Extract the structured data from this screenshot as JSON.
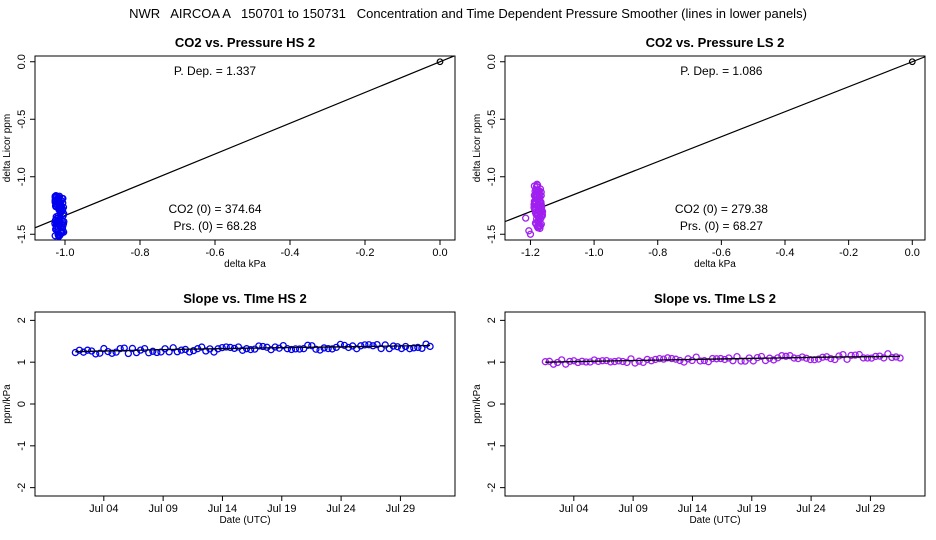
{
  "main_title": "NWR   AIRCOA A   150701 to 150731   Concentration and Time Dependent Pressure Smoother (lines in lower panels)",
  "colors": {
    "hs": "#0000ee",
    "ls": "#a020f0",
    "line": "#000000"
  },
  "chart_data": [
    {
      "id": "p1",
      "type": "scatter",
      "title": "CO2 vs. Pressure HS 2",
      "xlabel": "delta kPa",
      "ylabel": "delta Licor ppm",
      "xlim": [
        -1.08,
        0.04
      ],
      "ylim": [
        -1.55,
        0.05
      ],
      "xticks": [
        -1.0,
        -0.8,
        -0.6,
        -0.4,
        -0.2,
        0.0
      ],
      "xtick_labels": [
        "-1.0",
        "-0.8",
        "-0.6",
        "-0.4",
        "-0.2",
        "0.0"
      ],
      "yticks": [
        0.0,
        -0.5,
        -1.0,
        -1.5
      ],
      "ytick_labels": [
        "0.0",
        "-0.5",
        "-1.0",
        "-1.5"
      ],
      "color_key": "hs",
      "cluster": {
        "x_center": -1.015,
        "x_spread": 0.012,
        "y_min": -1.52,
        "y_max": -1.16,
        "count": 90
      },
      "fit_line": {
        "slope": 1.337,
        "intercept": 0.0
      },
      "reference_point": [
        0.0,
        0.0
      ],
      "annotations": {
        "pdep": {
          "label": "P. Dep. =",
          "value": "1.337",
          "x": -0.6,
          "y": -0.08
        },
        "co2": {
          "label": "CO2 (0) =",
          "value": "374.64",
          "x": -0.6,
          "y": -1.28
        },
        "prs": {
          "label": "Prs. (0) =",
          "value": "68.28",
          "x": -0.6,
          "y": -1.43
        }
      }
    },
    {
      "id": "p2",
      "type": "scatter",
      "title": "CO2 vs. Pressure LS 2",
      "xlabel": "delta kPa",
      "ylabel": "delta Licor ppm",
      "xlim": [
        -1.28,
        0.04
      ],
      "ylim": [
        -1.55,
        0.05
      ],
      "xticks": [
        -1.2,
        -1.0,
        -0.8,
        -0.6,
        -0.4,
        -0.2,
        0.0
      ],
      "xtick_labels": [
        "-1.2",
        "-1.0",
        "-0.8",
        "-0.6",
        "-0.4",
        "-0.2",
        "0.0"
      ],
      "yticks": [
        0.0,
        -0.5,
        -1.0,
        -1.5
      ],
      "ytick_labels": [
        "0.0",
        "-0.5",
        "-1.0",
        "-1.5"
      ],
      "color_key": "ls",
      "cluster": {
        "x_center": -1.175,
        "x_spread": 0.014,
        "y_min": -1.45,
        "y_max": -1.06,
        "count": 90
      },
      "extra_points": [
        [
          -1.215,
          -1.36
        ],
        [
          -1.205,
          -1.47
        ],
        [
          -1.2,
          -1.5
        ]
      ],
      "fit_line": {
        "slope": 1.086,
        "intercept": 0.0
      },
      "reference_point": [
        0.0,
        0.0
      ],
      "annotations": {
        "pdep": {
          "label": "P. Dep. =",
          "value": "1.086",
          "x": -0.6,
          "y": -0.08
        },
        "co2": {
          "label": "CO2 (0) =",
          "value": "279.38",
          "x": -0.6,
          "y": -1.28
        },
        "prs": {
          "label": "Prs. (0) =",
          "value": "68.27",
          "x": -0.6,
          "y": -1.43
        }
      }
    },
    {
      "id": "p3",
      "type": "scatter",
      "title": "Slope vs. TIme HS 2",
      "xlabel": "Date (UTC)",
      "ylabel": "ppm/kPa",
      "xlim": [
        -2.8,
        32.6
      ],
      "ylim": [
        -2.2,
        2.2
      ],
      "xticks": [
        3,
        8,
        13,
        18,
        23,
        28
      ],
      "xtick_labels": [
        "Jul 04",
        "Jul 09",
        "Jul 14",
        "Jul 19",
        "Jul 24",
        "Jul 29"
      ],
      "yticks": [
        2,
        1,
        0,
        -1,
        -2
      ],
      "ytick_labels": [
        "2",
        "1",
        "0",
        "-1",
        "-2"
      ],
      "color_key": "hs",
      "series": {
        "t_start": 0.6,
        "t_end": 30.5,
        "count": 88,
        "base": 1.25,
        "end": 1.4,
        "noise": 0.07
      },
      "smooth": [
        [
          0.6,
          1.25
        ],
        [
          8,
          1.3
        ],
        [
          16,
          1.34
        ],
        [
          24,
          1.37
        ],
        [
          30.5,
          1.4
        ]
      ]
    },
    {
      "id": "p4",
      "type": "scatter",
      "title": "Slope vs. TIme LS 2",
      "xlabel": "Date (UTC)",
      "ylabel": "ppm/kPa",
      "xlim": [
        -2.8,
        32.6
      ],
      "ylim": [
        -2.2,
        2.2
      ],
      "xticks": [
        3,
        8,
        13,
        18,
        23,
        28
      ],
      "xtick_labels": [
        "Jul 04",
        "Jul 09",
        "Jul 14",
        "Jul 19",
        "Jul 24",
        "Jul 29"
      ],
      "yticks": [
        2,
        1,
        0,
        -1,
        -2
      ],
      "ytick_labels": [
        "2",
        "1",
        "0",
        "-1",
        "-2"
      ],
      "color_key": "ls",
      "series": {
        "t_start": 0.6,
        "t_end": 30.5,
        "count": 88,
        "base": 1.0,
        "end": 1.15,
        "noise": 0.06
      },
      "smooth": [
        [
          0.6,
          1.0
        ],
        [
          8,
          1.04
        ],
        [
          16,
          1.08
        ],
        [
          24,
          1.12
        ],
        [
          30.5,
          1.14
        ]
      ]
    }
  ]
}
